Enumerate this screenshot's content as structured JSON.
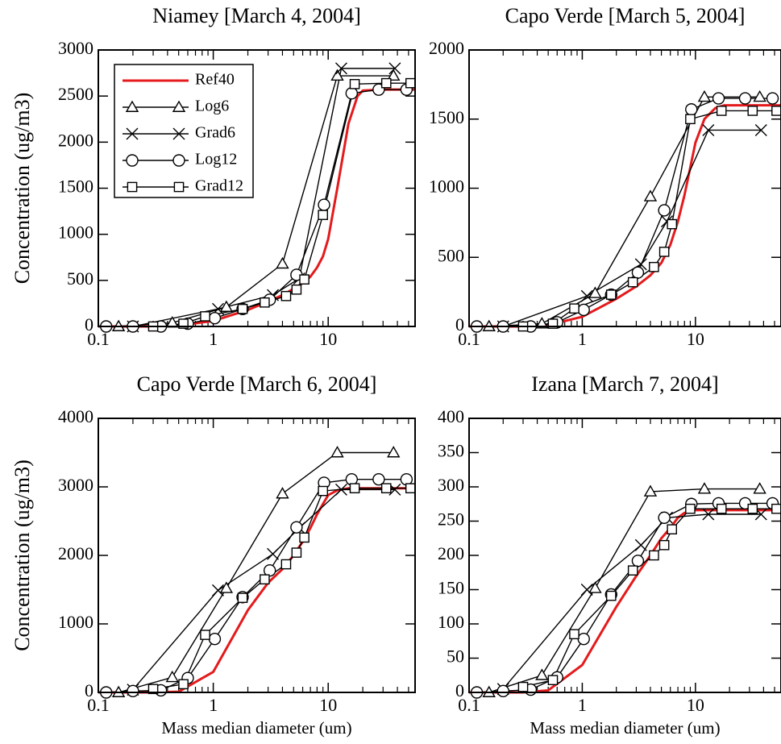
{
  "chart_data": [
    {
      "type": "line",
      "title": "Niamey [March 4, 2004]",
      "y_label": "Concentration (ug/m3)",
      "xlog": true,
      "xlim": [
        0.1,
        57
      ],
      "xticks": [
        0.1,
        1,
        10
      ],
      "xminorticks": [
        0.2,
        0.3,
        0.4,
        0.5,
        0.6,
        0.7,
        0.8,
        0.9,
        2,
        3,
        4,
        5,
        6,
        7,
        8,
        9,
        20,
        30,
        40,
        50
      ],
      "ylim": [
        0,
        3000
      ],
      "yticks": [
        0,
        500,
        1000,
        1500,
        2000,
        2500,
        3000
      ],
      "legend": "upper left",
      "series": [
        {
          "name": "Ref40",
          "color": "#e41a1c",
          "marker": "none",
          "x": [
            0.1,
            0.3,
            0.5,
            1,
            2,
            3,
            4,
            5,
            6,
            7,
            8,
            9,
            10,
            12,
            15,
            18,
            20,
            30,
            57
          ],
          "values": [
            0,
            0,
            10,
            60,
            180,
            270,
            340,
            410,
            470,
            540,
            640,
            760,
            950,
            1500,
            2200,
            2500,
            2560,
            2570,
            2570
          ]
        },
        {
          "name": "Log6",
          "color": "#000000",
          "marker": "triangle",
          "x": [
            0.15,
            0.44,
            1.3,
            4,
            12,
            37
          ],
          "values": [
            0,
            40,
            210,
            680,
            2720,
            2720
          ]
        },
        {
          "name": "Grad6",
          "color": "#000000",
          "marker": "cross",
          "x": [
            0.2,
            1.1,
            3.3,
            5.6,
            13,
            38
          ],
          "values": [
            0,
            190,
            340,
            520,
            2800,
            2800
          ]
        },
        {
          "name": "Log12",
          "color": "#000000",
          "marker": "circle",
          "x": [
            0.117,
            0.2,
            0.35,
            0.6,
            1.03,
            1.8,
            3.1,
            5.3,
            9.2,
            16,
            27.5,
            48
          ],
          "values": [
            0,
            0,
            0,
            30,
            90,
            190,
            290,
            560,
            1320,
            2530,
            2570,
            2570
          ]
        },
        {
          "name": "Grad12",
          "color": "#000000",
          "marker": "square",
          "x": [
            0.3,
            0.55,
            0.85,
            1.8,
            2.8,
            4.3,
            5.3,
            6.2,
            9,
            17,
            32,
            52
          ],
          "values": [
            0,
            30,
            110,
            190,
            260,
            330,
            400,
            510,
            1210,
            2630,
            2640,
            2640
          ]
        }
      ]
    },
    {
      "type": "line",
      "title": "Capo Verde [March 5, 2004]",
      "xlog": true,
      "xlim": [
        0.1,
        57
      ],
      "xticks": [
        0.1,
        1,
        10
      ],
      "xminorticks": [
        0.2,
        0.3,
        0.4,
        0.5,
        0.6,
        0.7,
        0.8,
        0.9,
        2,
        3,
        4,
        5,
        6,
        7,
        8,
        9,
        20,
        30,
        40,
        50
      ],
      "ylim": [
        0,
        2000
      ],
      "yticks": [
        0,
        500,
        1000,
        1500,
        2000
      ],
      "series": [
        {
          "color": "#e41a1c",
          "marker": "none",
          "x": [
            0.1,
            0.3,
            0.5,
            1,
            2,
            3,
            4,
            5,
            6,
            7,
            8,
            9,
            10,
            12,
            15,
            18,
            20,
            30,
            57
          ],
          "values": [
            0,
            0,
            10,
            70,
            200,
            290,
            370,
            460,
            590,
            760,
            950,
            1150,
            1330,
            1500,
            1580,
            1600,
            1600,
            1600,
            1600
          ]
        },
        {
          "color": "#000000",
          "marker": "triangle",
          "x": [
            0.15,
            0.44,
            1.3,
            4,
            12,
            37
          ],
          "values": [
            0,
            20,
            240,
            940,
            1660,
            1660
          ]
        },
        {
          "color": "#000000",
          "marker": "cross",
          "x": [
            0.2,
            1.1,
            3.3,
            5.6,
            13,
            38
          ],
          "values": [
            0,
            220,
            450,
            760,
            1420,
            1420
          ]
        },
        {
          "color": "#000000",
          "marker": "circle",
          "x": [
            0.117,
            0.2,
            0.35,
            0.6,
            1.03,
            1.8,
            3.1,
            5.3,
            9.2,
            16,
            27.5,
            48
          ],
          "values": [
            0,
            0,
            0,
            30,
            120,
            230,
            390,
            840,
            1570,
            1650,
            1650,
            1650
          ]
        },
        {
          "color": "#000000",
          "marker": "square",
          "x": [
            0.3,
            0.55,
            0.85,
            1.8,
            2.8,
            4.3,
            5.3,
            6.2,
            9,
            17,
            32,
            52
          ],
          "values": [
            0,
            20,
            130,
            230,
            320,
            430,
            540,
            740,
            1500,
            1560,
            1560,
            1560
          ]
        }
      ]
    },
    {
      "type": "line",
      "title": "Capo Verde [March 6, 2004]",
      "y_label": "Concentration (ug/m3)",
      "x_label": "Mass median diameter (um)",
      "xlog": true,
      "xlim": [
        0.1,
        57
      ],
      "xticks": [
        0.1,
        1,
        10
      ],
      "xminorticks": [
        0.2,
        0.3,
        0.4,
        0.5,
        0.6,
        0.7,
        0.8,
        0.9,
        2,
        3,
        4,
        5,
        6,
        7,
        8,
        9,
        20,
        30,
        40,
        50
      ],
      "ylim": [
        0,
        4000
      ],
      "yticks": [
        0,
        1000,
        2000,
        3000,
        4000
      ],
      "series": [
        {
          "color": "#e41a1c",
          "marker": "none",
          "x": [
            0.1,
            0.3,
            0.5,
            1,
            2,
            3,
            4,
            5,
            6,
            7,
            8,
            9,
            10,
            12,
            15,
            18,
            20,
            30,
            57
          ],
          "values": [
            0,
            0,
            10,
            300,
            1200,
            1600,
            1800,
            2000,
            2200,
            2400,
            2600,
            2750,
            2880,
            2950,
            2980,
            2980,
            2980,
            2980,
            2980
          ]
        },
        {
          "color": "#000000",
          "marker": "triangle",
          "x": [
            0.15,
            0.44,
            1.3,
            4,
            12,
            37
          ],
          "values": [
            0,
            220,
            1520,
            2900,
            3500,
            3500
          ]
        },
        {
          "color": "#000000",
          "marker": "cross",
          "x": [
            0.2,
            1.1,
            3.3,
            5.6,
            13,
            38
          ],
          "values": [
            40,
            1490,
            2020,
            2400,
            2960,
            2960
          ]
        },
        {
          "color": "#000000",
          "marker": "circle",
          "x": [
            0.117,
            0.2,
            0.35,
            0.6,
            1.03,
            1.8,
            3.1,
            5.3,
            9.2,
            16,
            27.5,
            48
          ],
          "values": [
            0,
            20,
            30,
            210,
            780,
            1390,
            1780,
            2410,
            3060,
            3110,
            3110,
            3110
          ]
        },
        {
          "color": "#000000",
          "marker": "square",
          "x": [
            0.3,
            0.55,
            0.85,
            1.8,
            2.8,
            4.3,
            5.3,
            6.2,
            9,
            17,
            32,
            52
          ],
          "values": [
            50,
            120,
            840,
            1380,
            1650,
            1870,
            2040,
            2260,
            2940,
            2980,
            2980,
            2980
          ]
        }
      ]
    },
    {
      "type": "line",
      "title": "Izana [March 7, 2004]",
      "x_label": "Mass median diameter (um)",
      "xlog": true,
      "xlim": [
        0.1,
        57
      ],
      "xticks": [
        0.1,
        1,
        10
      ],
      "xminorticks": [
        0.2,
        0.3,
        0.4,
        0.5,
        0.6,
        0.7,
        0.8,
        0.9,
        2,
        3,
        4,
        5,
        6,
        7,
        8,
        9,
        20,
        30,
        40,
        50
      ],
      "ylim": [
        0,
        400
      ],
      "yticks": [
        0,
        50,
        100,
        150,
        200,
        250,
        300,
        350,
        400
      ],
      "series": [
        {
          "color": "#e41a1c",
          "marker": "none",
          "x": [
            0.1,
            0.3,
            0.5,
            1,
            2,
            3,
            4,
            5,
            6,
            7,
            8,
            9,
            10,
            12,
            15,
            18,
            20,
            30,
            57
          ],
          "values": [
            0,
            0,
            3,
            40,
            125,
            170,
            200,
            225,
            240,
            255,
            262,
            265,
            266,
            266,
            266,
            266,
            266,
            266,
            266
          ]
        },
        {
          "color": "#000000",
          "marker": "triangle",
          "x": [
            0.15,
            0.44,
            1.3,
            4,
            12,
            37
          ],
          "values": [
            0,
            25,
            152,
            293,
            297,
            297
          ]
        },
        {
          "color": "#000000",
          "marker": "cross",
          "x": [
            0.2,
            1.1,
            3.3,
            5.6,
            13,
            38
          ],
          "values": [
            5,
            150,
            215,
            255,
            260,
            260
          ]
        },
        {
          "color": "#000000",
          "marker": "circle",
          "x": [
            0.117,
            0.2,
            0.35,
            0.6,
            1.03,
            1.8,
            3.1,
            5.3,
            9.2,
            16,
            27.5,
            48
          ],
          "values": [
            0,
            2,
            4,
            22,
            78,
            143,
            192,
            255,
            275,
            276,
            276,
            276
          ]
        },
        {
          "color": "#000000",
          "marker": "square",
          "x": [
            0.3,
            0.55,
            0.85,
            1.8,
            2.8,
            4.3,
            5.3,
            6.2,
            9,
            17,
            32,
            52
          ],
          "values": [
            8,
            18,
            85,
            141,
            178,
            200,
            215,
            238,
            268,
            268,
            268,
            268
          ]
        }
      ]
    }
  ]
}
